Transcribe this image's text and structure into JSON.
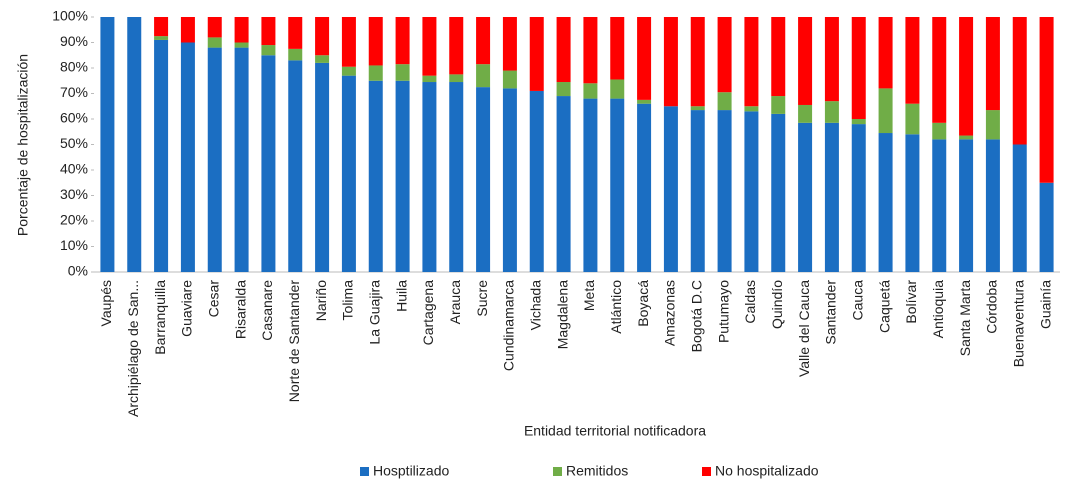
{
  "chart_data": {
    "type": "stacked_bar",
    "categories": [
      "Vaupés",
      "Archipiélago de San...",
      "Barranquilla",
      "Guaviare",
      "Cesar",
      "Risaralda",
      "Casanare",
      "Norte de Santander",
      "Nariño",
      "Tolima",
      "La Guajira",
      "Huila",
      "Cartagena",
      "Arauca",
      "Sucre",
      "Cundinamarca",
      "Vichada",
      "Magdalena",
      "Meta",
      "Atlántico",
      "Boyacá",
      "Amazonas",
      "Bogotá D.C",
      "Putumayo",
      "Caldas",
      "Quindío",
      "Valle del Cauca",
      "Santander",
      "Cauca",
      "Caquetá",
      "Bolívar",
      "Antioquia",
      "Santa Marta",
      "Córdoba",
      "Buenaventura",
      "Guainía"
    ],
    "series": [
      {
        "name": "Hosptilizado",
        "color": "#1b6ec2",
        "values": [
          100,
          100,
          91,
          90,
          88,
          88,
          85,
          83,
          82,
          77,
          75,
          75,
          74.5,
          74.5,
          72.5,
          72,
          71,
          69,
          68,
          68,
          66,
          65,
          63.5,
          63.5,
          63,
          62,
          58.5,
          58.5,
          58,
          54.5,
          54,
          52,
          52,
          52,
          50,
          35
        ]
      },
      {
        "name": "Remitidos",
        "color": "#70ad47",
        "values": [
          0,
          0,
          1.5,
          0,
          4,
          2,
          4,
          4.5,
          3,
          3.5,
          6,
          6.5,
          2.5,
          3,
          9,
          7,
          0,
          5.5,
          6,
          7.5,
          1.5,
          0,
          1.5,
          7,
          2,
          7,
          7,
          8.5,
          2,
          17.5,
          12,
          6.5,
          1.5,
          11.5,
          0,
          0
        ]
      },
      {
        "name": "No hospitalizado",
        "color": "#ff0000",
        "values": [
          0,
          0,
          7.5,
          10,
          8,
          10,
          11,
          12.5,
          15,
          19.5,
          19,
          18.5,
          23,
          22.5,
          18.5,
          21,
          29,
          25.5,
          26,
          24.5,
          32.5,
          35,
          35,
          29.5,
          35,
          31,
          34.5,
          33,
          40,
          28,
          34,
          41.5,
          46.5,
          36.5,
          50,
          65
        ]
      }
    ],
    "x_label": "Entidad territorial notificadora",
    "y_label": "Porcentaje de hospitalización",
    "ylim": [
      0,
      100
    ],
    "yticks": [
      {
        "value": 0,
        "label": "0%"
      },
      {
        "value": 10,
        "label": "10%"
      },
      {
        "value": 20,
        "label": "20%"
      },
      {
        "value": 30,
        "label": "30%"
      },
      {
        "value": 40,
        "label": "40%"
      },
      {
        "value": 50,
        "label": "50%"
      },
      {
        "value": 60,
        "label": "60%"
      },
      {
        "value": 70,
        "label": "70%"
      },
      {
        "value": 80,
        "label": "80%"
      },
      {
        "value": 90,
        "label": "90%"
      },
      {
        "value": 100,
        "label": "100%"
      }
    ],
    "legend": "bottom"
  }
}
